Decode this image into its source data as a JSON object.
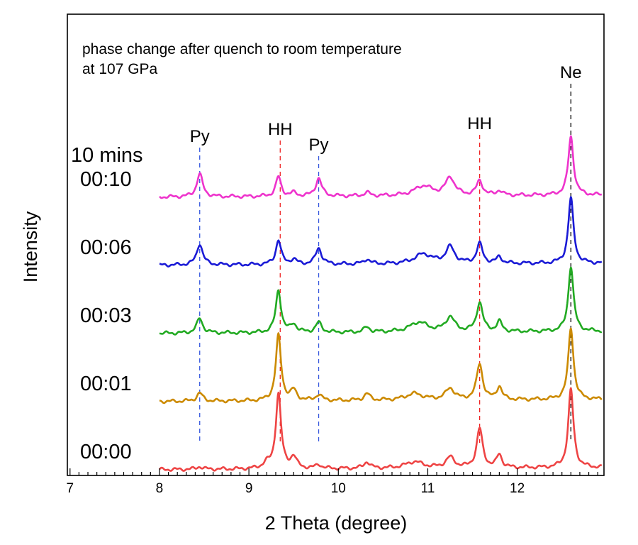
{
  "chart_data": {
    "type": "line",
    "title_lines": [
      "phase change after quench to room temperature",
      "at 107 GPa"
    ],
    "xlabel": "2 Theta (degree)",
    "ylabel": "Intensity",
    "xlim": [
      6.97,
      12.97
    ],
    "x_ticks": [
      "7",
      "8",
      "9",
      "10",
      "11",
      "12"
    ],
    "grid": false,
    "peak_labels": [
      {
        "text": "Py",
        "x": 8.45,
        "color": "#3355dd"
      },
      {
        "text": "HH",
        "x": 9.35,
        "color": "#ee2222"
      },
      {
        "text": "Py",
        "x": 9.78,
        "color": "#3355dd"
      },
      {
        "text": "HH",
        "x": 11.58,
        "color": "#ee2222"
      },
      {
        "text": "Ne",
        "x": 12.6,
        "color": "#000000"
      }
    ],
    "series": [
      {
        "name": "00:00",
        "color": "#ee4444",
        "offset": 0,
        "baseline": 0.05,
        "slope": 0.012,
        "peaks": [
          [
            8.45,
            0.08,
            0.04
          ],
          [
            9.33,
            2.3,
            0.035
          ],
          [
            9.5,
            0.35,
            0.04
          ],
          [
            9.2,
            0.15,
            0.05
          ],
          [
            9.78,
            0.12,
            0.04
          ],
          [
            10.32,
            0.2,
            0.04
          ],
          [
            10.85,
            0.2,
            0.12
          ],
          [
            11.25,
            0.32,
            0.06
          ],
          [
            11.58,
            1.2,
            0.04
          ],
          [
            11.8,
            0.4,
            0.035
          ],
          [
            12.6,
            2.4,
            0.035
          ]
        ]
      },
      {
        "name": "00:01",
        "color": "#cc8a00",
        "offset": 1.0,
        "baseline": 0.05,
        "slope": 0.012,
        "peaks": [
          [
            8.45,
            0.25,
            0.04
          ],
          [
            9.33,
            2.0,
            0.035
          ],
          [
            9.5,
            0.3,
            0.04
          ],
          [
            9.78,
            0.18,
            0.04
          ],
          [
            10.32,
            0.2,
            0.04
          ],
          [
            10.85,
            0.2,
            0.12
          ],
          [
            11.25,
            0.35,
            0.06
          ],
          [
            11.58,
            1.1,
            0.04
          ],
          [
            11.8,
            0.4,
            0.035
          ],
          [
            12.6,
            2.2,
            0.035
          ]
        ]
      },
      {
        "name": "00:03",
        "color": "#22aa22",
        "offset": 2.0,
        "baseline": 0.05,
        "slope": 0.012,
        "peaks": [
          [
            8.45,
            0.45,
            0.04
          ],
          [
            9.33,
            1.3,
            0.035
          ],
          [
            9.5,
            0.25,
            0.04
          ],
          [
            9.78,
            0.3,
            0.04
          ],
          [
            10.32,
            0.15,
            0.04
          ],
          [
            10.9,
            0.3,
            0.12
          ],
          [
            11.25,
            0.45,
            0.06
          ],
          [
            11.58,
            0.9,
            0.04
          ],
          [
            11.8,
            0.3,
            0.035
          ],
          [
            12.6,
            2.0,
            0.035
          ]
        ]
      },
      {
        "name": "00:06",
        "color": "#1a1ad6",
        "offset": 3.0,
        "baseline": 0.05,
        "slope": 0.012,
        "peaks": [
          [
            8.45,
            0.65,
            0.04
          ],
          [
            9.33,
            0.75,
            0.035
          ],
          [
            9.5,
            0.15,
            0.04
          ],
          [
            9.78,
            0.5,
            0.04
          ],
          [
            10.32,
            0.15,
            0.04
          ],
          [
            10.95,
            0.3,
            0.12
          ],
          [
            11.25,
            0.5,
            0.06
          ],
          [
            11.58,
            0.6,
            0.04
          ],
          [
            11.8,
            0.2,
            0.035
          ],
          [
            12.6,
            2.0,
            0.035
          ]
        ]
      },
      {
        "name": "00:10",
        "color": "#ee33cc",
        "offset": 4.0,
        "baseline": 0.05,
        "slope": 0.012,
        "peaks": [
          [
            8.45,
            0.7,
            0.04
          ],
          [
            9.33,
            0.6,
            0.035
          ],
          [
            9.5,
            0.1,
            0.04
          ],
          [
            9.78,
            0.55,
            0.04
          ],
          [
            10.32,
            0.1,
            0.04
          ],
          [
            10.95,
            0.3,
            0.12
          ],
          [
            11.25,
            0.55,
            0.06
          ],
          [
            11.58,
            0.45,
            0.04
          ],
          [
            11.8,
            0.15,
            0.035
          ],
          [
            12.6,
            1.8,
            0.035
          ]
        ]
      }
    ],
    "top_label": "10 mins"
  }
}
